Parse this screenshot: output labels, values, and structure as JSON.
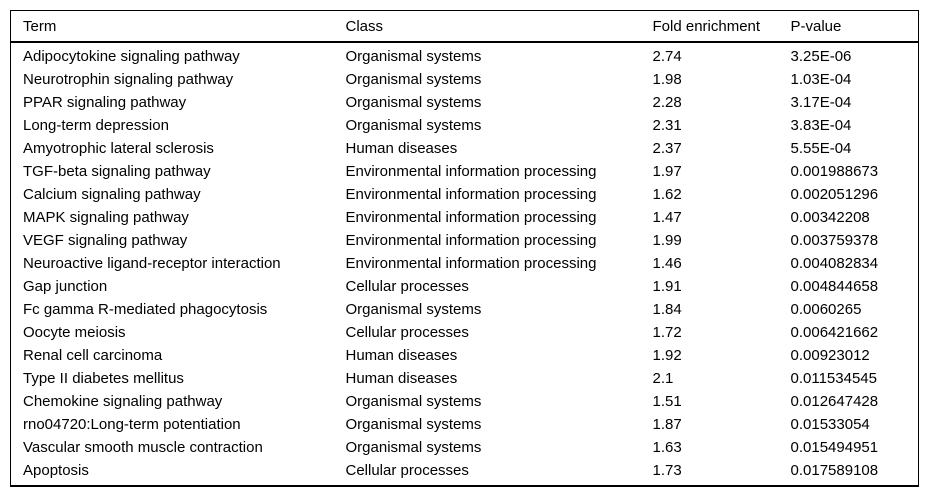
{
  "page": {
    "background_color": "#ffffff",
    "text_color": "#000000",
    "rule_color": "#000000"
  },
  "table": {
    "columns": [
      {
        "key": "term",
        "label": "Term"
      },
      {
        "key": "class",
        "label": "Class"
      },
      {
        "key": "fold_enrichment",
        "label": "Fold enrichment"
      },
      {
        "key": "p_value",
        "label": "P-value"
      }
    ],
    "rows": [
      {
        "term": "Adipocytokine signaling pathway",
        "class": "Organismal systems",
        "fold_enrichment": "2.74",
        "p_value": "3.25E-06"
      },
      {
        "term": "Neurotrophin signaling pathway",
        "class": "Organismal systems",
        "fold_enrichment": "1.98",
        "p_value": "1.03E-04"
      },
      {
        "term": "PPAR signaling pathway",
        "class": "Organismal systems",
        "fold_enrichment": "2.28",
        "p_value": "3.17E-04"
      },
      {
        "term": "Long-term depression",
        "class": "Organismal systems",
        "fold_enrichment": "2.31",
        "p_value": "3.83E-04"
      },
      {
        "term": "Amyotrophic lateral sclerosis",
        "class": "Human diseases",
        "fold_enrichment": "2.37",
        "p_value": "5.55E-04"
      },
      {
        "term": "TGF-beta signaling pathway",
        "class": "Environmental information processing",
        "fold_enrichment": "1.97",
        "p_value": "0.001988673"
      },
      {
        "term": "Calcium signaling pathway",
        "class": "Environmental information processing",
        "fold_enrichment": "1.62",
        "p_value": "0.002051296"
      },
      {
        "term": "MAPK signaling pathway",
        "class": "Environmental information processing",
        "fold_enrichment": "1.47",
        "p_value": "0.00342208"
      },
      {
        "term": "VEGF signaling pathway",
        "class": "Environmental information processing",
        "fold_enrichment": "1.99",
        "p_value": "0.003759378"
      },
      {
        "term": "Neuroactive ligand-receptor interaction",
        "class": "Environmental information processing",
        "fold_enrichment": "1.46",
        "p_value": "0.004082834"
      },
      {
        "term": "Gap junction",
        "class": "Cellular processes",
        "fold_enrichment": "1.91",
        "p_value": "0.004844658"
      },
      {
        "term": "Fc gamma R-mediated phagocytosis",
        "class": "Organismal systems",
        "fold_enrichment": "1.84",
        "p_value": "0.0060265"
      },
      {
        "term": "Oocyte meiosis",
        "class": "Cellular processes",
        "fold_enrichment": "1.72",
        "p_value": "0.006421662"
      },
      {
        "term": "Renal cell carcinoma",
        "class": "Human diseases",
        "fold_enrichment": "1.92",
        "p_value": "0.00923012"
      },
      {
        "term": "Type II diabetes mellitus",
        "class": "Human diseases",
        "fold_enrichment": "2.1",
        "p_value": "0.011534545"
      },
      {
        "term": "Chemokine signaling pathway",
        "class": "Organismal systems",
        "fold_enrichment": "1.51",
        "p_value": "0.012647428"
      },
      {
        "term": "rno04720:Long-term potentiation",
        "class": "Organismal systems",
        "fold_enrichment": "1.87",
        "p_value": "0.01533054"
      },
      {
        "term": "Vascular smooth muscle contraction",
        "class": "Organismal systems",
        "fold_enrichment": "1.63",
        "p_value": "0.015494951"
      },
      {
        "term": "Apoptosis",
        "class": "Cellular processes",
        "fold_enrichment": "1.73",
        "p_value": "0.017589108"
      }
    ]
  }
}
